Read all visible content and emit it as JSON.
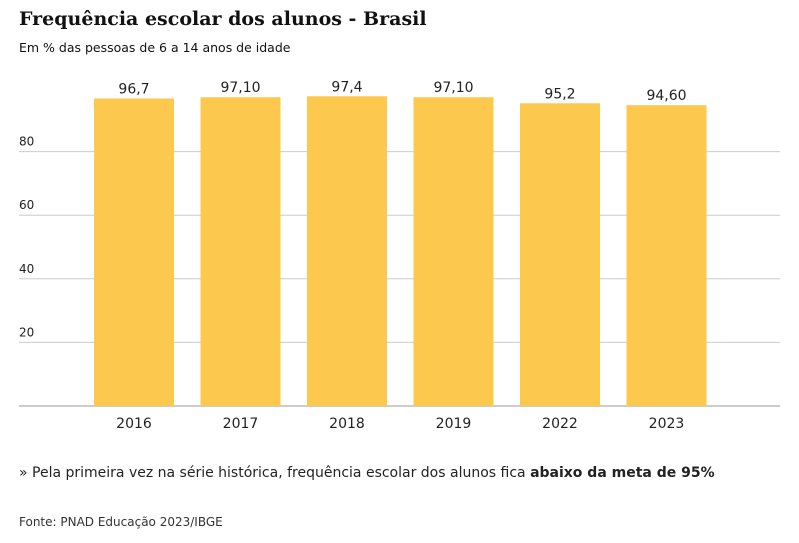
{
  "header": {
    "title": "Frequência escolar dos alunos - Brasil",
    "subtitle": "Em % das pessoas de 6 a 14 anos de idade"
  },
  "note": {
    "text": "» Pela primeira vez na série histórica, frequência escolar dos alunos fica ",
    "bold": "abaixo da meta de 95%"
  },
  "source": "Fonte: PNAD Educação 2023/IBGE",
  "colors": {
    "bar": "#fcc94e",
    "grid": "#cccccc",
    "axis": "#999999",
    "text": "#222222"
  },
  "chart_data": {
    "type": "bar",
    "categories": [
      "2016",
      "2017",
      "2018",
      "2019",
      "2022",
      "2023"
    ],
    "values": [
      96.7,
      97.1,
      97.4,
      97.1,
      95.2,
      94.6
    ],
    "value_labels": [
      "96,7",
      "97,10",
      "97,4",
      "97,10",
      "95,2",
      "94,60"
    ],
    "title": "Frequência escolar dos alunos - Brasil",
    "subtitle": "Em % das pessoas de 6 a 14 anos de idade",
    "yticks": [
      20,
      40,
      60,
      80
    ],
    "ylim": [
      0,
      100
    ],
    "grid": true
  }
}
